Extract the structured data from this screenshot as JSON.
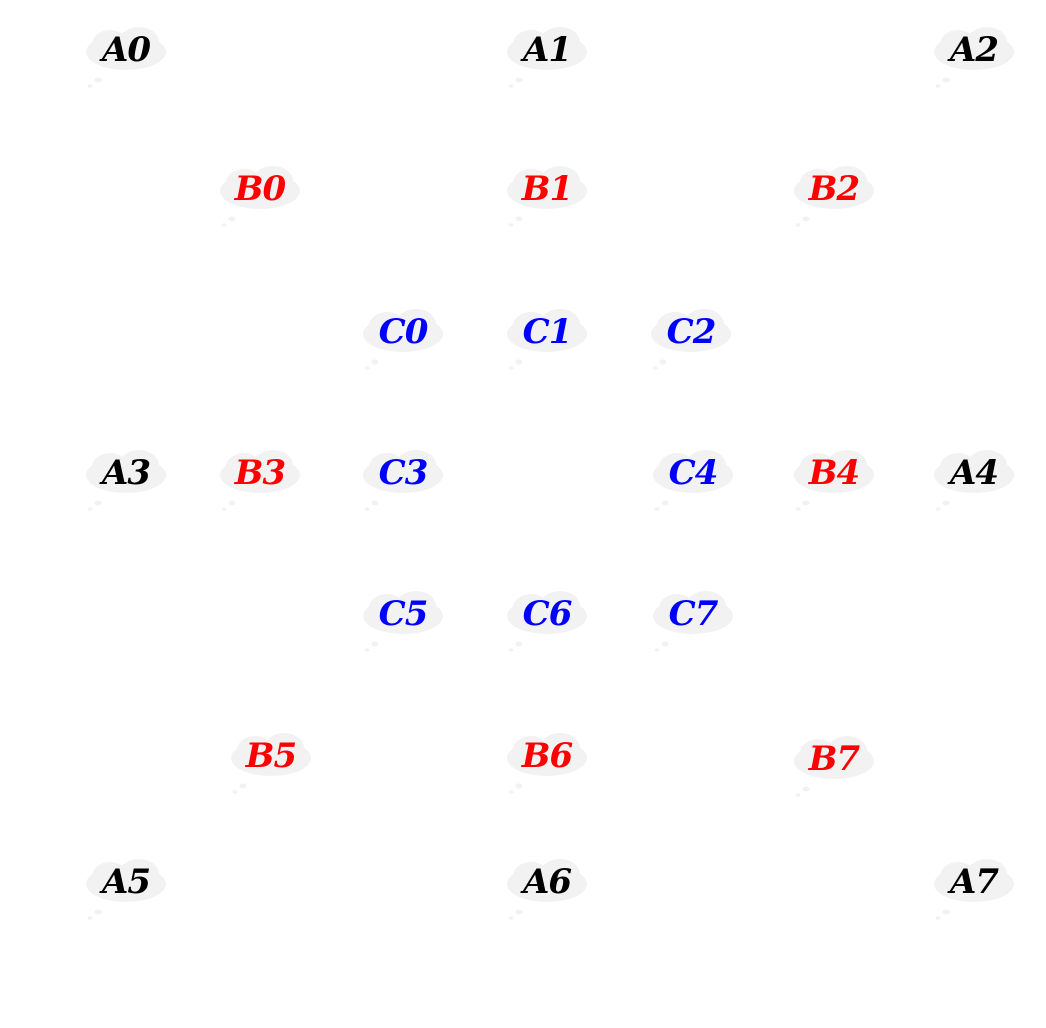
{
  "colors": {
    "A": "#000000",
    "B": "#ff0000",
    "C": "#0000ff",
    "cloud": "#f2f2f2"
  },
  "nodes": [
    {
      "id": "A0",
      "label": "A0",
      "group": "A"
    },
    {
      "id": "A1",
      "label": "A1",
      "group": "A"
    },
    {
      "id": "A2",
      "label": "A2",
      "group": "A"
    },
    {
      "id": "B0",
      "label": "B0",
      "group": "B"
    },
    {
      "id": "B1",
      "label": "B1",
      "group": "B"
    },
    {
      "id": "B2",
      "label": "B2",
      "group": "B"
    },
    {
      "id": "C0",
      "label": "C0",
      "group": "C"
    },
    {
      "id": "C1",
      "label": "C1",
      "group": "C"
    },
    {
      "id": "C2",
      "label": "C2",
      "group": "C"
    },
    {
      "id": "A3",
      "label": "A3",
      "group": "A"
    },
    {
      "id": "B3",
      "label": "B3",
      "group": "B"
    },
    {
      "id": "C3",
      "label": "C3",
      "group": "C"
    },
    {
      "id": "C4",
      "label": "C4",
      "group": "C"
    },
    {
      "id": "B4",
      "label": "B4",
      "group": "B"
    },
    {
      "id": "A4",
      "label": "A4",
      "group": "A"
    },
    {
      "id": "C5",
      "label": "C5",
      "group": "C"
    },
    {
      "id": "C6",
      "label": "C6",
      "group": "C"
    },
    {
      "id": "C7",
      "label": "C7",
      "group": "C"
    },
    {
      "id": "B5",
      "label": "B5",
      "group": "B"
    },
    {
      "id": "B6",
      "label": "B6",
      "group": "B"
    },
    {
      "id": "B7",
      "label": "B7",
      "group": "B"
    },
    {
      "id": "A5",
      "label": "A5",
      "group": "A"
    },
    {
      "id": "A6",
      "label": "A6",
      "group": "A"
    },
    {
      "id": "A7",
      "label": "A7",
      "group": "A"
    }
  ]
}
